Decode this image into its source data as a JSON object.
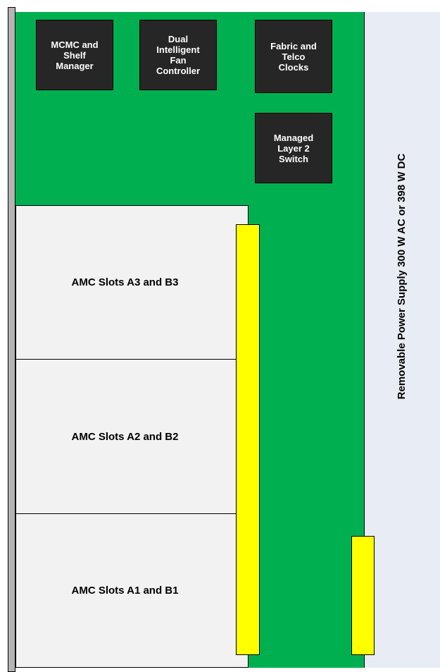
{
  "colors": {
    "board": "#00b050",
    "chip": "#262626",
    "connector": "#ffff00",
    "slot": "#f2f2f2",
    "psu": "#e8ecf4",
    "rail": "#b4b4b4"
  },
  "chips": {
    "mcmc": "MCMC and\nShelf\nManager",
    "fan": "Dual\nIntelligent\nFan\nController",
    "clocks": "Fabric and\nTelco\nClocks",
    "switch": "Managed\nLayer 2\nSwitch"
  },
  "slots": {
    "a3b3": "AMC Slots A3 and B3",
    "a2b2": "AMC Slots A2 and B2",
    "a1b1": "AMC Slots A1 and B1"
  },
  "power_supply": {
    "label": "Removable Power Supply 300 W AC or 398 W DC"
  }
}
